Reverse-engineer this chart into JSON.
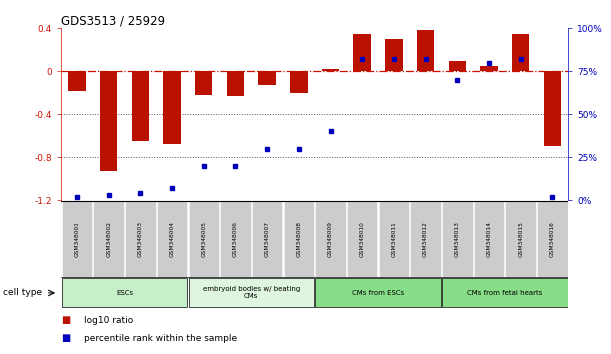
{
  "title": "GDS3513 / 25929",
  "samples": [
    "GSM348001",
    "GSM348002",
    "GSM348003",
    "GSM348004",
    "GSM348005",
    "GSM348006",
    "GSM348007",
    "GSM348008",
    "GSM348009",
    "GSM348010",
    "GSM348011",
    "GSM348012",
    "GSM348013",
    "GSM348014",
    "GSM348015",
    "GSM348016"
  ],
  "log10_ratio": [
    -0.18,
    -0.93,
    -0.65,
    -0.68,
    -0.22,
    -0.23,
    -0.13,
    -0.2,
    0.02,
    0.35,
    0.3,
    0.38,
    0.1,
    0.05,
    0.35,
    -0.7
  ],
  "percentile_rank": [
    2,
    3,
    4,
    7,
    20,
    20,
    30,
    30,
    40,
    82,
    82,
    82,
    70,
    80,
    82,
    2
  ],
  "cell_type_groups": [
    {
      "label": "ESCs",
      "start": 0,
      "end": 3,
      "color": "#c8f0c8"
    },
    {
      "label": "embryoid bodies w/ beating\nCMs",
      "start": 4,
      "end": 7,
      "color": "#dff5df"
    },
    {
      "label": "CMs from ESCs",
      "start": 8,
      "end": 11,
      "color": "#88dd88"
    },
    {
      "label": "CMs from fetal hearts",
      "start": 12,
      "end": 15,
      "color": "#88dd88"
    }
  ],
  "ylim_left": [
    -1.2,
    0.4
  ],
  "ylim_right": [
    0,
    100
  ],
  "bar_color": "#bb1100",
  "dot_color": "#0000bb",
  "hline_color": "#cc1100",
  "dotgrid_color": "#555555",
  "label_bg": "#cccccc",
  "right_axis_color": "#0000bb"
}
